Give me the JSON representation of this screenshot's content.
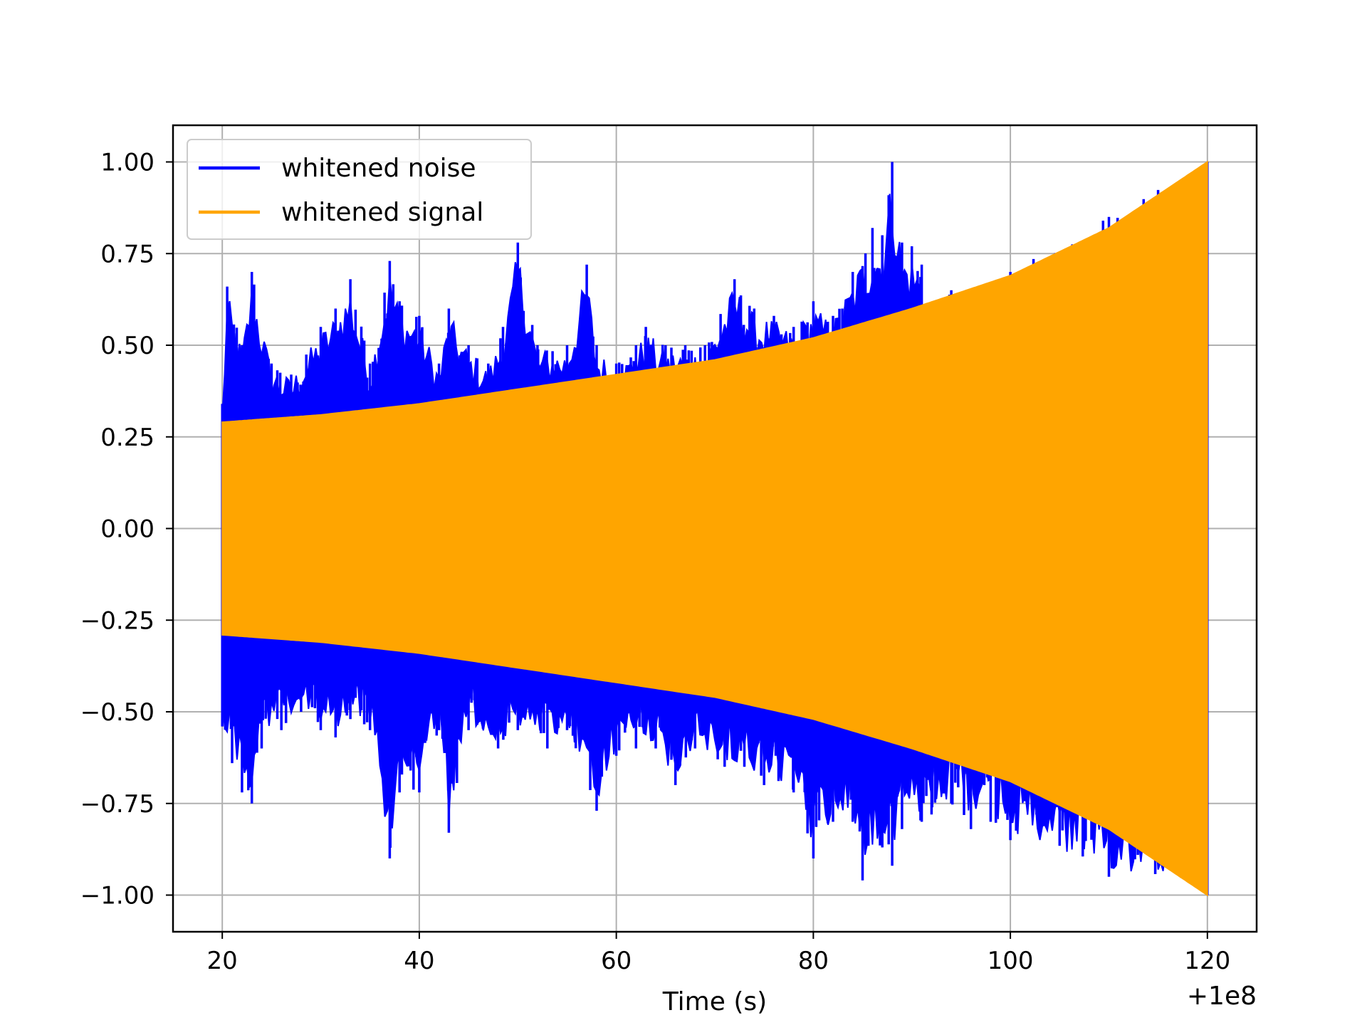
{
  "chart_data": {
    "type": "line",
    "title": "",
    "xlabel": "Time (s)",
    "ylabel": "",
    "x_offset_label": "+1e8",
    "xlim": [
      15,
      125
    ],
    "ylim": [
      -1.1,
      1.1
    ],
    "grid": true,
    "legend_position": "upper-left",
    "x_ticks": [
      20,
      40,
      60,
      80,
      100,
      120
    ],
    "x_tick_labels": [
      "20",
      "40",
      "60",
      "80",
      "100",
      "120"
    ],
    "y_ticks": [
      1.0,
      0.75,
      0.5,
      0.25,
      0.0,
      -0.25,
      -0.5,
      -0.75,
      -1.0
    ],
    "y_tick_labels": [
      "1.00",
      "0.75",
      "0.50",
      "0.25",
      "0.00",
      "−0.25",
      "−0.50",
      "−0.75",
      "−1.00"
    ],
    "series": [
      {
        "name": "whitened noise",
        "color": "#0000ff",
        "x_range": [
          20,
          120
        ],
        "upper_envelope": [
          [
            20,
            0.34
          ],
          [
            20.5,
            0.66
          ],
          [
            22,
            0.5
          ],
          [
            23,
            0.7
          ],
          [
            25,
            0.45
          ],
          [
            27,
            0.42
          ],
          [
            30,
            0.55
          ],
          [
            31.5,
            0.6
          ],
          [
            33,
            0.68
          ],
          [
            35,
            0.45
          ],
          [
            37,
            0.73
          ],
          [
            38,
            0.62
          ],
          [
            40,
            0.58
          ],
          [
            42,
            0.45
          ],
          [
            43,
            0.6
          ],
          [
            45,
            0.5
          ],
          [
            47,
            0.45
          ],
          [
            48.5,
            0.55
          ],
          [
            50,
            0.78
          ],
          [
            52,
            0.5
          ],
          [
            55,
            0.5
          ],
          [
            57,
            0.72
          ],
          [
            58,
            0.5
          ],
          [
            60,
            0.45
          ],
          [
            62,
            0.5
          ],
          [
            63,
            0.55
          ],
          [
            65,
            0.5
          ],
          [
            67,
            0.5
          ],
          [
            69,
            0.5
          ],
          [
            72,
            0.68
          ],
          [
            74,
            0.6
          ],
          [
            76,
            0.58
          ],
          [
            78,
            0.55
          ],
          [
            80,
            0.62
          ],
          [
            82,
            0.58
          ],
          [
            84,
            0.7
          ],
          [
            86,
            0.82
          ],
          [
            87,
            0.8
          ],
          [
            88,
            1.0
          ],
          [
            89,
            0.78
          ],
          [
            90,
            0.77
          ],
          [
            91,
            0.72
          ],
          [
            92,
            0.55
          ],
          [
            93,
            0.6
          ],
          [
            94,
            0.65
          ],
          [
            96,
            0.63
          ],
          [
            98,
            0.64
          ],
          [
            100,
            0.7
          ],
          [
            110,
            0.85
          ],
          [
            120,
            1.0
          ]
        ],
        "lower_envelope": [
          [
            20,
            -0.54
          ],
          [
            21,
            -0.64
          ],
          [
            22,
            -0.72
          ],
          [
            23,
            -0.75
          ],
          [
            24,
            -0.6
          ],
          [
            26,
            -0.55
          ],
          [
            28,
            -0.5
          ],
          [
            30,
            -0.55
          ],
          [
            31.5,
            -0.57
          ],
          [
            33,
            -0.52
          ],
          [
            35,
            -0.55
          ],
          [
            37,
            -0.9
          ],
          [
            38,
            -0.72
          ],
          [
            40,
            -0.72
          ],
          [
            42,
            -0.55
          ],
          [
            43,
            -0.83
          ],
          [
            45,
            -0.55
          ],
          [
            48,
            -0.6
          ],
          [
            50,
            -0.55
          ],
          [
            53,
            -0.6
          ],
          [
            55,
            -0.55
          ],
          [
            58,
            -0.77
          ],
          [
            60,
            -0.62
          ],
          [
            62,
            -0.6
          ],
          [
            64,
            -0.6
          ],
          [
            66,
            -0.7
          ],
          [
            68,
            -0.6
          ],
          [
            71,
            -0.65
          ],
          [
            73,
            -0.65
          ],
          [
            75,
            -0.7
          ],
          [
            78,
            -0.72
          ],
          [
            80,
            -0.9
          ],
          [
            82,
            -0.8
          ],
          [
            84,
            -0.8
          ],
          [
            85,
            -0.96
          ],
          [
            87,
            -0.87
          ],
          [
            88,
            -0.92
          ],
          [
            89,
            -0.82
          ],
          [
            91,
            -0.8
          ],
          [
            92,
            -0.78
          ],
          [
            94,
            -0.75
          ],
          [
            96,
            -0.82
          ],
          [
            98,
            -0.8
          ],
          [
            100,
            -0.85
          ],
          [
            110,
            -0.95
          ],
          [
            120,
            -1.0
          ]
        ]
      },
      {
        "name": "whitened signal",
        "color": "#ffa500",
        "x_range": [
          20,
          120
        ],
        "upper_envelope": [
          [
            20,
            0.29
          ],
          [
            30,
            0.31
          ],
          [
            40,
            0.34
          ],
          [
            50,
            0.38
          ],
          [
            60,
            0.42
          ],
          [
            70,
            0.46
          ],
          [
            80,
            0.52
          ],
          [
            90,
            0.6
          ],
          [
            100,
            0.69
          ],
          [
            110,
            0.82
          ],
          [
            120,
            1.0
          ]
        ],
        "lower_envelope": [
          [
            20,
            -0.29
          ],
          [
            30,
            -0.31
          ],
          [
            40,
            -0.34
          ],
          [
            50,
            -0.38
          ],
          [
            60,
            -0.42
          ],
          [
            70,
            -0.46
          ],
          [
            80,
            -0.52
          ],
          [
            90,
            -0.6
          ],
          [
            100,
            -0.69
          ],
          [
            110,
            -0.82
          ],
          [
            120,
            -1.0
          ]
        ]
      }
    ]
  }
}
